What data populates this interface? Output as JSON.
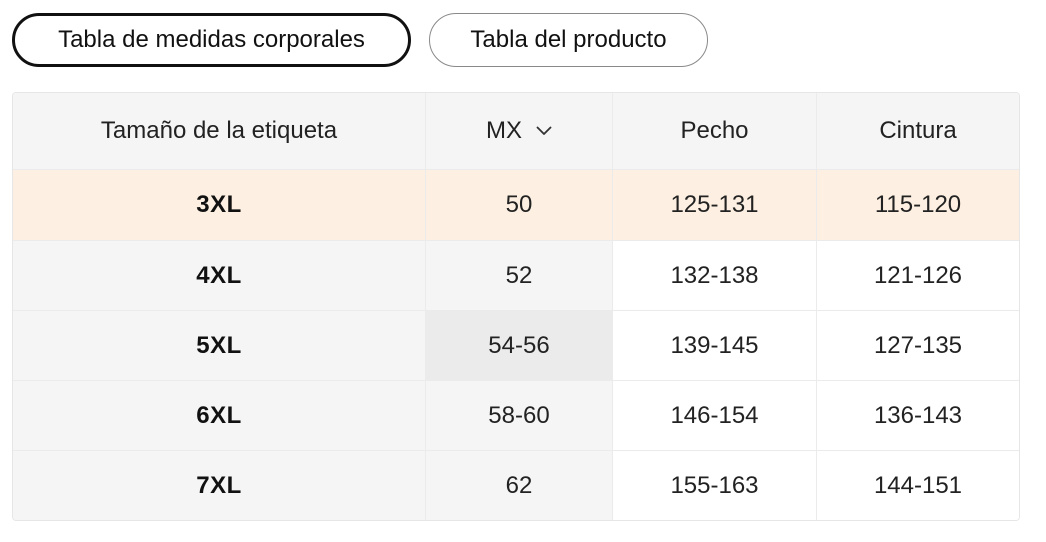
{
  "tabs": {
    "body_label": "Tabla de medidas corporales",
    "product_label": "Tabla del producto"
  },
  "table": {
    "headers": {
      "size_label": "Tamaño de la etiqueta",
      "region": "MX",
      "chest": "Pecho",
      "waist": "Cintura"
    },
    "rows": [
      {
        "size": "3XL",
        "mx": "50",
        "chest": "125-131",
        "waist": "115-120"
      },
      {
        "size": "4XL",
        "mx": "52",
        "chest": "132-138",
        "waist": "121-126"
      },
      {
        "size": "5XL",
        "mx": "54-56",
        "chest": "139-145",
        "waist": "127-135"
      },
      {
        "size": "6XL",
        "mx": "58-60",
        "chest": "146-154",
        "waist": "136-143"
      },
      {
        "size": "7XL",
        "mx": "62",
        "chest": "155-163",
        "waist": "144-151"
      }
    ],
    "highlight_color": "#fdf0e2"
  },
  "icons": {
    "region_dropdown": "chevron-down-icon"
  }
}
